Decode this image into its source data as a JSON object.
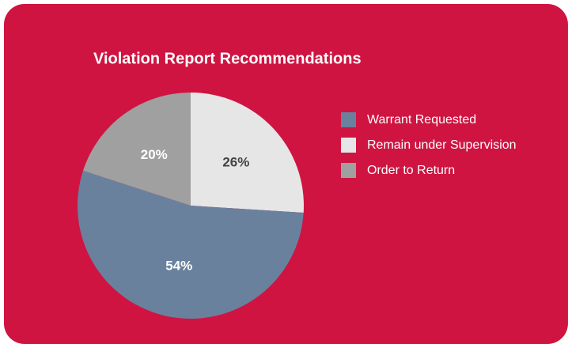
{
  "chart_data": {
    "type": "pie",
    "title": "Violation Report Recommendations",
    "categories": [
      "Remain under Supervision",
      "Warrant Requested",
      "Order to Return"
    ],
    "values": [
      26,
      54,
      20
    ],
    "value_labels": [
      "26%",
      "54%",
      "20%"
    ],
    "colors": [
      "#e6e6e6",
      "#6a819e",
      "#a0a0a0"
    ],
    "legend": "right"
  }
}
